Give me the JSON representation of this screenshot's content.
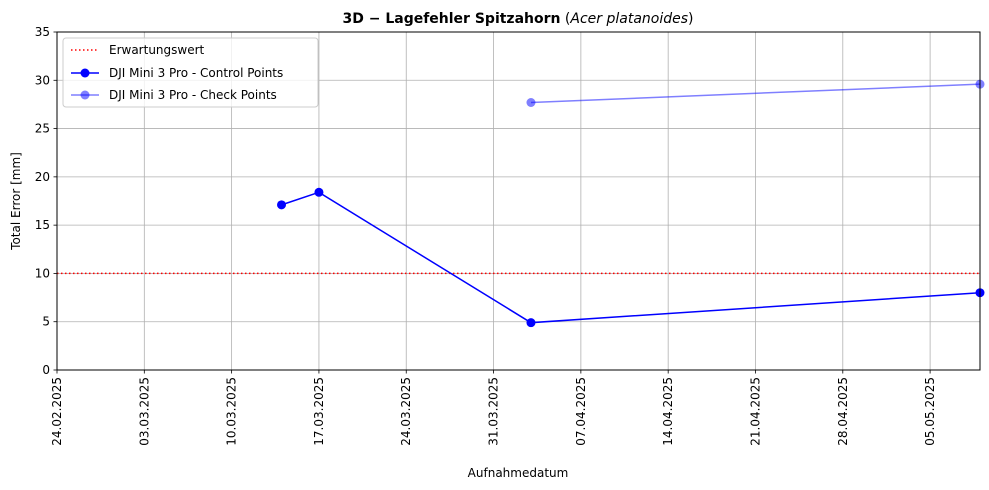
{
  "chart_data": {
    "type": "line",
    "title_bold": "3D − Lagefehler Spitzahorn",
    "title_italic": "Acer platanoides",
    "xlabel": "Aufnahmedatum",
    "ylabel": "Total Error [mm]",
    "ylim": [
      0,
      35
    ],
    "yticks": [
      0,
      5,
      10,
      15,
      20,
      25,
      30,
      35
    ],
    "xlim": [
      "2025-02-24",
      "2025-05-09"
    ],
    "xticks": [
      "2025-02-24",
      "2025-03-03",
      "2025-03-10",
      "2025-03-17",
      "2025-03-24",
      "2025-03-31",
      "2025-04-07",
      "2025-04-14",
      "2025-04-21",
      "2025-04-28",
      "2025-05-05"
    ],
    "xtick_labels": [
      "24.02.2025",
      "03.03.2025",
      "10.03.2025",
      "17.03.2025",
      "24.03.2025",
      "31.03.2025",
      "07.04.2025",
      "14.04.2025",
      "21.04.2025",
      "28.04.2025",
      "05.05.2025"
    ],
    "grid": true,
    "legend_position": "top-left",
    "reference_line": {
      "name": "Erwartungswert",
      "y": 10,
      "color": "#ff0000",
      "style": "dotted"
    },
    "series": [
      {
        "name": "DJI Mini 3 Pro - Control Points",
        "color": "#0000ff",
        "alpha": 1.0,
        "x": [
          "2025-03-14",
          "2025-03-17",
          "2025-04-03",
          "2025-05-09"
        ],
        "y": [
          17.1,
          18.4,
          4.9,
          8.0
        ]
      },
      {
        "name": "DJI Mini 3 Pro - Check Points",
        "color": "#0000ff",
        "alpha": 0.5,
        "x": [
          "2025-04-03",
          "2025-05-09"
        ],
        "y": [
          27.7,
          29.6
        ]
      }
    ]
  }
}
